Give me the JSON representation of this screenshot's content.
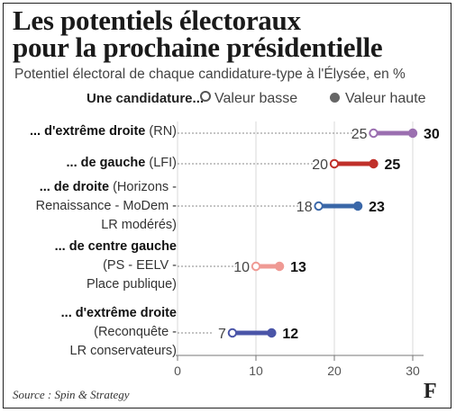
{
  "header": {
    "title_line1": "Les potentiels électoraux",
    "title_line2": "pour la prochaine présidentielle",
    "subtitle": "Potentiel électoral de chaque candidature-type à l'Élysée, en %"
  },
  "legend": {
    "lead": "Une candidature...",
    "low": "Valeur basse",
    "high": "Valeur haute"
  },
  "rows": [
    {
      "lines": [
        {
          "bold": "... d'extrême droite",
          "normal": " (RN)"
        }
      ]
    },
    {
      "lines": [
        {
          "bold": "... de gauche",
          "normal": " (LFI)"
        }
      ]
    },
    {
      "lines": [
        {
          "bold": "... de droite",
          "normal": " (Horizons -"
        },
        {
          "bold": "",
          "normal": "Renaissance - MoDem -"
        },
        {
          "bold": "",
          "normal": "LR modérés)"
        }
      ]
    },
    {
      "lines": [
        {
          "bold": "... de centre gauche",
          "normal": ""
        },
        {
          "bold": "",
          "normal": "(PS - EELV -"
        },
        {
          "bold": "",
          "normal": "Place publique)"
        }
      ]
    },
    {
      "lines": [
        {
          "bold": "... d'extrême droite",
          "normal": ""
        },
        {
          "bold": "",
          "normal": "(Reconquête -"
        },
        {
          "bold": "",
          "normal": "LR conservateurs)"
        }
      ]
    }
  ],
  "chart_data": {
    "type": "dumbbell",
    "categories": [
      "... d'extrême droite (RN)",
      "... de gauche (LFI)",
      "... de droite (Horizons - Renaissance - MoDem - LR modérés)",
      "... de centre gauche (PS - EELV - Place publique)",
      "... d'extrême droite (Reconquête - LR conservateurs)"
    ],
    "series": [
      {
        "name": "Valeur basse",
        "values": [
          25,
          20,
          18,
          10,
          7
        ]
      },
      {
        "name": "Valeur haute",
        "values": [
          30,
          25,
          23,
          13,
          12
        ]
      }
    ],
    "colors": [
      "#9b6fb0",
      "#c0302a",
      "#3a67a8",
      "#ef9a94",
      "#4a55a8"
    ],
    "x_ticks": [
      0,
      10,
      20,
      30
    ],
    "xlim": [
      0,
      30
    ],
    "grid": true
  },
  "footer": {
    "source": "Source : Spin & Strategy",
    "logo": "F"
  }
}
